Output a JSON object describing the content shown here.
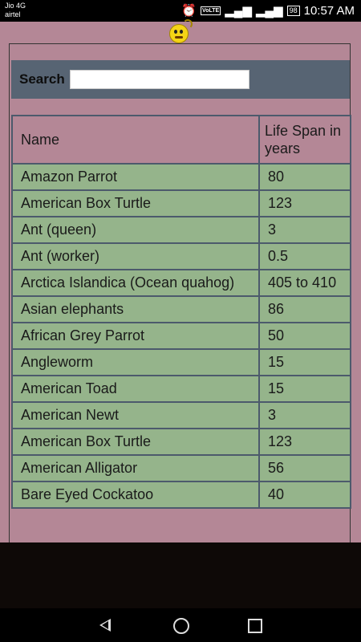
{
  "status_bar": {
    "carrier_1": "Jio 4G",
    "carrier_2": "airtel",
    "volte": "VoLTE",
    "battery": "98",
    "time": "10:57 AM"
  },
  "search": {
    "label": "Search",
    "value": "",
    "placeholder": ""
  },
  "table": {
    "headers": [
      "Name",
      "Life Span in years"
    ],
    "rows": [
      [
        "Amazon Parrot",
        "80"
      ],
      [
        "American Box Turtle",
        "123"
      ],
      [
        "Ant (queen)",
        "3"
      ],
      [
        "Ant (worker)",
        "0.5"
      ],
      [
        "Arctica Islandica (Ocean quahog)",
        "405 to 410"
      ],
      [
        "Asian elephants",
        "86"
      ],
      [
        "African Grey Parrot",
        "50"
      ],
      [
        "Angleworm",
        "15"
      ],
      [
        "American Toad",
        "15"
      ],
      [
        "American Newt",
        "3"
      ],
      [
        "American Box Turtle",
        "123"
      ],
      [
        "American Alligator",
        "56"
      ],
      [
        "Bare Eyed Cockatoo",
        "40"
      ]
    ]
  },
  "icons": {
    "status": [
      "alarm-icon",
      "volte-icon",
      "signal-icon",
      "signal-icon",
      "battery-icon"
    ],
    "nav": [
      "back-icon",
      "home-icon",
      "recents-icon"
    ],
    "app": "emoji-icon"
  },
  "colors": {
    "page_bg": "#b48796",
    "search_bar_bg": "#576473",
    "row_bg": "#95b48b",
    "grid_line": "#4c5a6c"
  }
}
